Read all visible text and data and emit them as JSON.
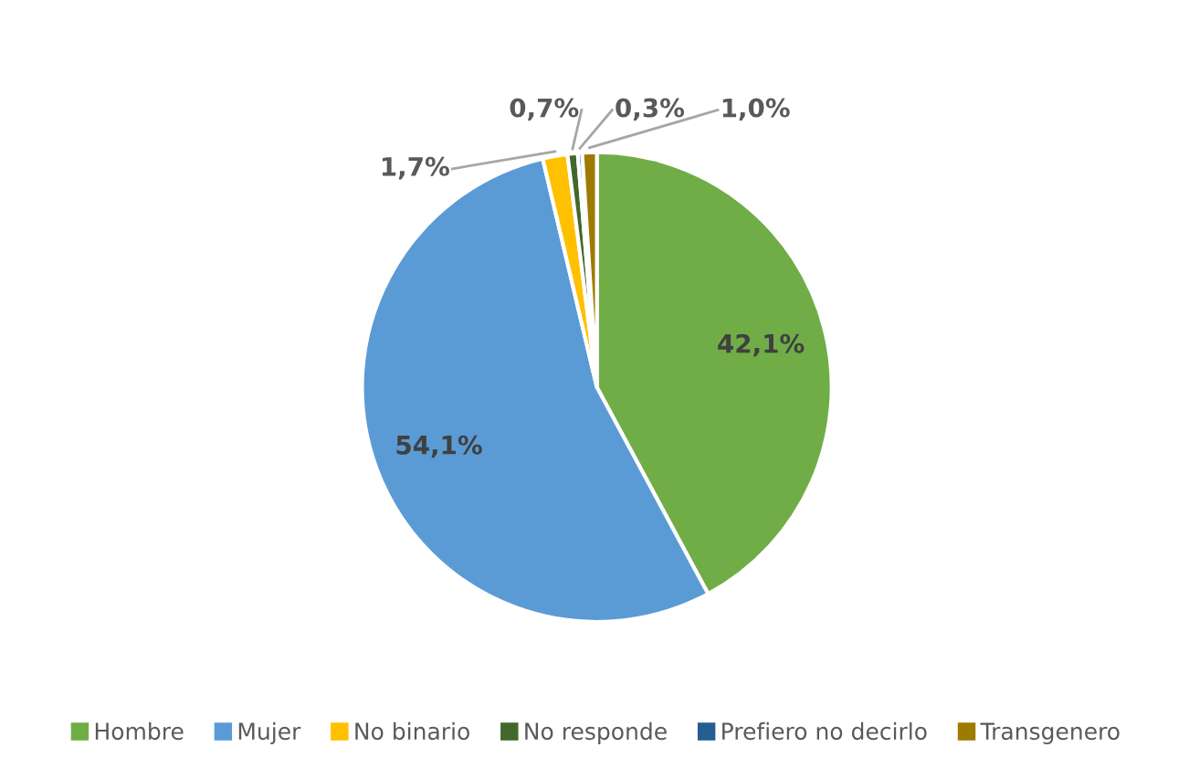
{
  "chart_data": {
    "type": "pie",
    "categories": [
      "Hombre",
      "Mujer",
      "No binario",
      "No responde",
      "Prefiero no decirlo",
      "Transgenero"
    ],
    "values": [
      42.1,
      54.1,
      1.7,
      0.7,
      0.3,
      1.0
    ],
    "colors": [
      "#70ad47",
      "#5b9bd5",
      "#ffc000",
      "#43682b",
      "#255e91",
      "#9e7b00"
    ],
    "value_labels": [
      "42,1%",
      "54,1%",
      "1,7%",
      "0,7%",
      "0,3%",
      "1,0%"
    ],
    "legend": "bottom"
  }
}
